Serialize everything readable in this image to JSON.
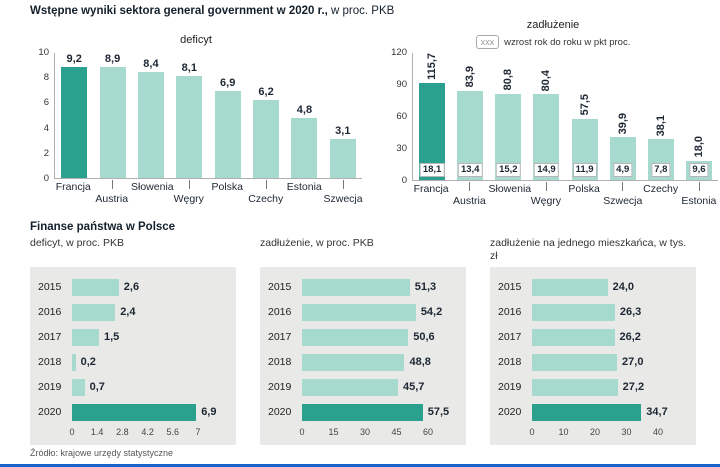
{
  "header": {
    "title_bold": "Wstępne wyniki sektora general government w 2020 r.,",
    "title_regular": " w proc. PKB"
  },
  "section": {
    "title": "Finanse państwa w Polsce"
  },
  "footer": {
    "source": "Źródło: krajowe urzędy statystyczne"
  },
  "colors": {
    "bar_light": "#a7dacf",
    "bar_dark": "#2aa18f",
    "panel_bg": "#e9e9e7",
    "accent_blue": "#1a63cc"
  },
  "chart_data": [
    {
      "type": "bar",
      "orientation": "vertical",
      "title": "deficyt",
      "categories": [
        "Francja",
        "Austria",
        "Słowenia",
        "Węgry",
        "Polska",
        "Czechy",
        "Estonia",
        "Szwecja"
      ],
      "values": [
        9.2,
        8.9,
        8.4,
        8.1,
        6.9,
        6.2,
        4.8,
        3.1
      ],
      "labels": [
        "9,2",
        "8,9",
        "8,4",
        "8,1",
        "6,9",
        "6,2",
        "4,8",
        "3,1"
      ],
      "highlight_index": 0,
      "ylim": [
        0,
        10
      ],
      "yticks": [
        0,
        2,
        4,
        6,
        8,
        10
      ],
      "grid": false,
      "legend_position": "none"
    },
    {
      "type": "bar",
      "orientation": "vertical",
      "title": "zadłużenie",
      "legend_box": "xxx",
      "legend": "wzrost rok do roku w pkt proc.",
      "categories": [
        "Francja",
        "Austria",
        "Słowenia",
        "Węgry",
        "Polska",
        "Szwecja",
        "Czechy",
        "Estonia"
      ],
      "values": [
        115.7,
        83.9,
        80.8,
        80.4,
        57.5,
        39.9,
        38.1,
        18.0
      ],
      "labels": [
        "115,7",
        "83,9",
        "80,8",
        "80,4",
        "57,5",
        "39,9",
        "38,1",
        "18,0"
      ],
      "growth_labels": [
        "18,1",
        "13,4",
        "15,2",
        "14,9",
        "11,9",
        "4,9",
        "7,8",
        "9,6"
      ],
      "highlight_index": 0,
      "ylim": [
        0,
        120
      ],
      "yticks": [
        0,
        30,
        60,
        90,
        120
      ],
      "grid": false,
      "legend_position": "top"
    },
    {
      "type": "bar",
      "orientation": "horizontal",
      "title": "deficyt, w proc. PKB",
      "categories": [
        "2015",
        "2016",
        "2017",
        "2018",
        "2019",
        "2020"
      ],
      "values": [
        2.6,
        2.4,
        1.5,
        0.2,
        0.7,
        6.9
      ],
      "labels": [
        "2,6",
        "2,4",
        "1,5",
        "0,2",
        "0,7",
        "6,9"
      ],
      "highlight_index": 5,
      "xlim": [
        0,
        7
      ],
      "xticks": [
        "0",
        "1.4",
        "2.8",
        "4.2",
        "5.6",
        "7"
      ],
      "grid": false
    },
    {
      "type": "bar",
      "orientation": "horizontal",
      "title": "zadłużenie, w proc. PKB",
      "categories": [
        "2015",
        "2016",
        "2017",
        "2018",
        "2019",
        "2020"
      ],
      "values": [
        51.3,
        54.2,
        50.6,
        48.8,
        45.7,
        57.5
      ],
      "labels": [
        "51,3",
        "54,2",
        "50,6",
        "48,8",
        "45,7",
        "57,5"
      ],
      "highlight_index": 5,
      "xlim": [
        0,
        60
      ],
      "xticks": [
        "0",
        "15",
        "30",
        "45",
        "60"
      ],
      "grid": false
    },
    {
      "type": "bar",
      "orientation": "horizontal",
      "title": "zadłużenie na jednego mieszkańca, w tys. zł",
      "categories": [
        "2015",
        "2016",
        "2017",
        "2018",
        "2019",
        "2020"
      ],
      "values": [
        24.0,
        26.3,
        26.2,
        27.0,
        27.2,
        34.7
      ],
      "labels": [
        "24,0",
        "26,3",
        "26,2",
        "27,0",
        "27,2",
        "34,7"
      ],
      "highlight_index": 5,
      "xlim": [
        0,
        40
      ],
      "xticks": [
        "0",
        "10",
        "20",
        "30",
        "40"
      ],
      "grid": false
    }
  ]
}
